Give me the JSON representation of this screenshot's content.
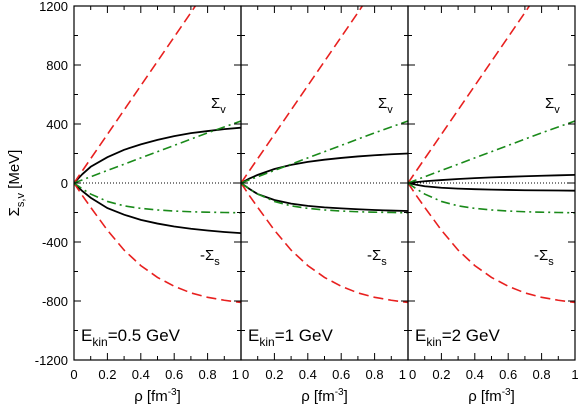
{
  "chart_data": {
    "type": "line",
    "ylabel_main": "Σ",
    "ylabel_sub": "s,v",
    "ylabel_unit": " [MeV]",
    "xlabel_main": "ρ [fm",
    "xlabel_sup": "-3",
    "xlabel_close": "]",
    "ylim": [
      -1200,
      1200
    ],
    "yticks": [
      -1200,
      -800,
      -400,
      0,
      400,
      800,
      1200
    ],
    "yticks_labels": [
      "-1200",
      "-800",
      "-400",
      "0",
      "400",
      "800",
      "1200"
    ],
    "xlim": [
      0,
      1
    ],
    "xticks": [
      0,
      0.2,
      0.4,
      0.6,
      0.8,
      1
    ],
    "xticks_labels_first": [
      "0",
      "0.2",
      "0.4",
      "0.6",
      "0.8",
      "1"
    ],
    "xticks_labels_rest": [
      "0",
      "0.2",
      "0.4",
      "0.6",
      "0.8",
      "1"
    ],
    "colors": {
      "solid": "#000000",
      "dashed": "#e8201f",
      "dashdot": "#1a8a1a",
      "zero": "#000000"
    },
    "panels": [
      {
        "label_main": "E",
        "label_sub": "kin",
        "label_rest": "=0.5 GeV",
        "sigma_v_main": "Σ",
        "sigma_v_sub": "v",
        "sigma_s_main": "-Σ",
        "sigma_s_sub": "s",
        "series": [
          {
            "style": "solid",
            "x": [
              0,
              0.05,
              0.1,
              0.2,
              0.3,
              0.4,
              0.5,
              0.6,
              0.7,
              0.8,
              0.9,
              1.0
            ],
            "y": [
              0,
              60,
              110,
              175,
              225,
              262,
              292,
              318,
              338,
              352,
              365,
              375
            ]
          },
          {
            "style": "solid",
            "x": [
              0,
              0.05,
              0.1,
              0.2,
              0.3,
              0.4,
              0.5,
              0.6,
              0.7,
              0.8,
              0.9,
              1.0
            ],
            "y": [
              0,
              -55,
              -100,
              -170,
              -215,
              -250,
              -275,
              -295,
              -310,
              -322,
              -332,
              -340
            ]
          },
          {
            "style": "dashed",
            "x": [
              0,
              0.1,
              0.2,
              0.3,
              0.4,
              0.5,
              0.6,
              0.7,
              0.75
            ],
            "y": [
              0,
              165,
              330,
              495,
              660,
              825,
              990,
              1155,
              1240
            ]
          },
          {
            "style": "dashed",
            "x": [
              0,
              0.05,
              0.1,
              0.2,
              0.3,
              0.4,
              0.5,
              0.6,
              0.7,
              0.8,
              0.9,
              1.0
            ],
            "y": [
              0,
              -85,
              -165,
              -320,
              -455,
              -560,
              -640,
              -700,
              -745,
              -775,
              -795,
              -810
            ]
          },
          {
            "style": "dashdot",
            "x": [
              0,
              0.2,
              0.4,
              0.6,
              0.8,
              1.0
            ],
            "y": [
              0,
              85,
              170,
              255,
              340,
              420
            ]
          },
          {
            "style": "dashdot",
            "x": [
              0,
              0.05,
              0.1,
              0.2,
              0.3,
              0.4,
              0.5,
              0.6,
              0.7,
              0.8,
              0.9,
              1.0
            ],
            "y": [
              0,
              -40,
              -75,
              -125,
              -155,
              -172,
              -183,
              -190,
              -195,
              -198,
              -200,
              -202
            ]
          }
        ]
      },
      {
        "label_main": "E",
        "label_sub": "kin",
        "label_rest": "=1 GeV",
        "sigma_v_main": "Σ",
        "sigma_v_sub": "v",
        "sigma_s_main": "-Σ",
        "sigma_s_sub": "s",
        "series": [
          {
            "style": "solid",
            "x": [
              0,
              0.05,
              0.1,
              0.2,
              0.3,
              0.4,
              0.5,
              0.6,
              0.7,
              0.8,
              0.9,
              1.0
            ],
            "y": [
              0,
              30,
              55,
              95,
              123,
              143,
              158,
              170,
              180,
              188,
              195,
              200
            ]
          },
          {
            "style": "solid",
            "x": [
              0,
              0.05,
              0.1,
              0.2,
              0.3,
              0.4,
              0.5,
              0.6,
              0.7,
              0.8,
              0.9,
              1.0
            ],
            "y": [
              0,
              -40,
              -75,
              -115,
              -140,
              -155,
              -165,
              -172,
              -178,
              -183,
              -187,
              -190
            ]
          },
          {
            "style": "dashed",
            "x": [
              0,
              0.1,
              0.2,
              0.3,
              0.4,
              0.5,
              0.6,
              0.7,
              0.75
            ],
            "y": [
              0,
              165,
              330,
              495,
              660,
              825,
              990,
              1155,
              1240
            ]
          },
          {
            "style": "dashed",
            "x": [
              0,
              0.05,
              0.1,
              0.2,
              0.3,
              0.4,
              0.5,
              0.6,
              0.7,
              0.8,
              0.9,
              1.0
            ],
            "y": [
              0,
              -85,
              -165,
              -320,
              -455,
              -560,
              -640,
              -700,
              -745,
              -775,
              -795,
              -810
            ]
          },
          {
            "style": "dashdot",
            "x": [
              0,
              0.2,
              0.4,
              0.6,
              0.8,
              1.0
            ],
            "y": [
              0,
              85,
              170,
              255,
              340,
              420
            ]
          },
          {
            "style": "dashdot",
            "x": [
              0,
              0.05,
              0.1,
              0.2,
              0.3,
              0.4,
              0.5,
              0.6,
              0.7,
              0.8,
              0.9,
              1.0
            ],
            "y": [
              0,
              -40,
              -75,
              -125,
              -155,
              -172,
              -183,
              -190,
              -195,
              -198,
              -200,
              -202
            ]
          }
        ]
      },
      {
        "label_main": "E",
        "label_sub": "kin",
        "label_rest": "=2 GeV",
        "sigma_v_main": "Σ",
        "sigma_v_sub": "v",
        "sigma_s_main": "-Σ",
        "sigma_s_sub": "s",
        "series": [
          {
            "style": "solid",
            "x": [
              0,
              0.05,
              0.1,
              0.2,
              0.3,
              0.4,
              0.5,
              0.6,
              0.7,
              0.8,
              0.9,
              1.0
            ],
            "y": [
              0,
              6,
              12,
              20,
              27,
              33,
              38,
              42,
              46,
              49,
              52,
              55
            ]
          },
          {
            "style": "solid",
            "x": [
              0,
              0.05,
              0.1,
              0.2,
              0.3,
              0.4,
              0.5,
              0.6,
              0.7,
              0.8,
              0.9,
              1.0
            ],
            "y": [
              0,
              -12,
              -22,
              -32,
              -38,
              -42,
              -45,
              -47,
              -49,
              -50,
              -51,
              -52
            ]
          },
          {
            "style": "dashed",
            "x": [
              0,
              0.1,
              0.2,
              0.3,
              0.4,
              0.5,
              0.6,
              0.7,
              0.75
            ],
            "y": [
              0,
              165,
              330,
              495,
              660,
              825,
              990,
              1155,
              1240
            ]
          },
          {
            "style": "dashed",
            "x": [
              0,
              0.05,
              0.1,
              0.2,
              0.3,
              0.4,
              0.5,
              0.6,
              0.7,
              0.8,
              0.9,
              1.0
            ],
            "y": [
              0,
              -85,
              -165,
              -320,
              -455,
              -560,
              -640,
              -700,
              -745,
              -775,
              -795,
              -810
            ]
          },
          {
            "style": "dashdot",
            "x": [
              0,
              0.2,
              0.4,
              0.6,
              0.8,
              1.0
            ],
            "y": [
              0,
              85,
              170,
              255,
              340,
              420
            ]
          },
          {
            "style": "dashdot",
            "x": [
              0,
              0.05,
              0.1,
              0.2,
              0.3,
              0.4,
              0.5,
              0.6,
              0.7,
              0.8,
              0.9,
              1.0
            ],
            "y": [
              0,
              -40,
              -75,
              -125,
              -155,
              -172,
              -183,
              -190,
              -195,
              -198,
              -200,
              -202
            ]
          }
        ]
      }
    ]
  }
}
